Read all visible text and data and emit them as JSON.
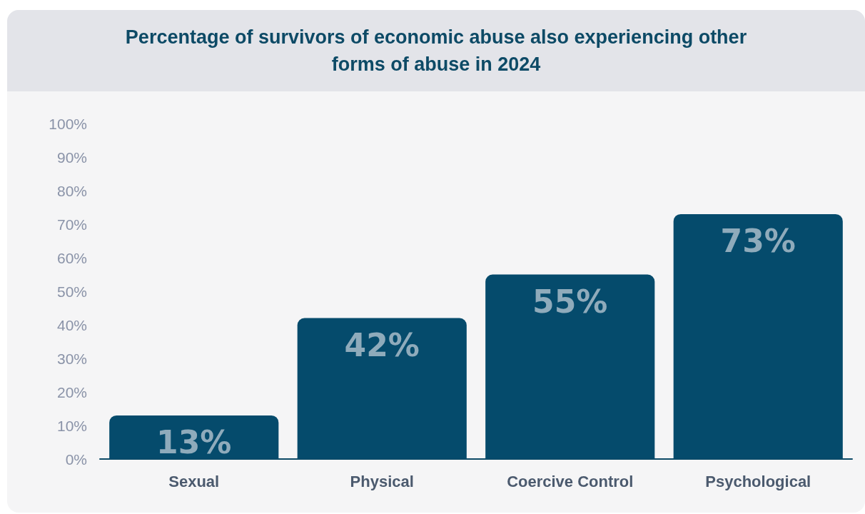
{
  "chart_data": {
    "type": "bar",
    "title": "Percentage of survivors of economic abuse also experiencing other forms of abuse in 2024",
    "categories": [
      "Sexual",
      "Physical",
      "Coercive Control",
      "Psychological"
    ],
    "values": [
      13,
      42,
      55,
      73
    ],
    "value_labels": [
      "13%",
      "42%",
      "55%",
      "73%"
    ],
    "color": "#054b6c",
    "ylim": [
      0,
      100
    ],
    "yticks": [
      {
        "value": 0,
        "label": "0%"
      },
      {
        "value": 10,
        "label": "10%"
      },
      {
        "value": 20,
        "label": "20%"
      },
      {
        "value": 30,
        "label": "30%"
      },
      {
        "value": 40,
        "label": "40%"
      },
      {
        "value": 50,
        "label": "50%"
      },
      {
        "value": 60,
        "label": "60%"
      },
      {
        "value": 70,
        "label": "70%"
      },
      {
        "value": 80,
        "label": "80%"
      },
      {
        "value": 90,
        "label": "90%"
      },
      {
        "value": 100,
        "label": "100%"
      }
    ]
  }
}
